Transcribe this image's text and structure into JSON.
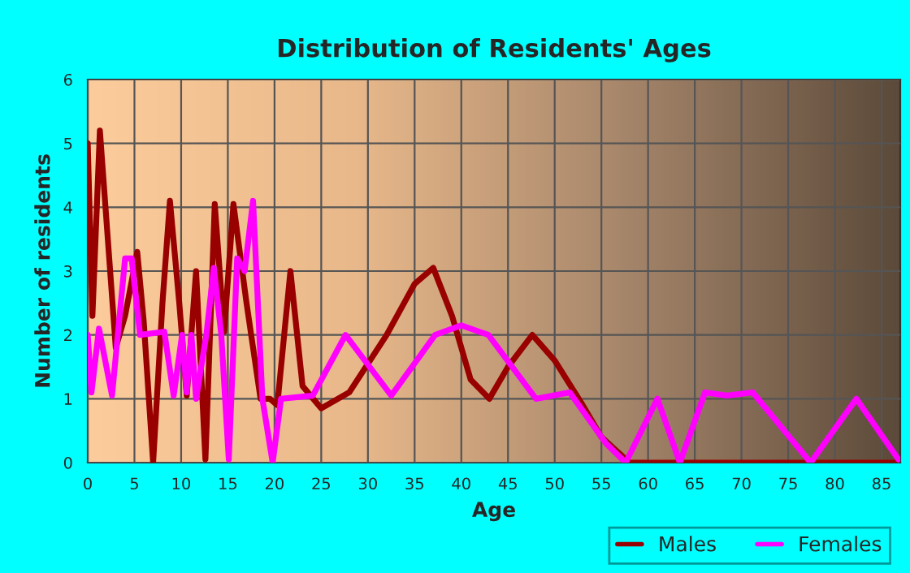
{
  "chart_data": {
    "type": "line",
    "title": "Distribution of Residents' Ages",
    "xlabel": "Age",
    "ylabel": "Number of residents",
    "xlim": [
      0,
      87
    ],
    "xticks": [
      0,
      5,
      10,
      15,
      20,
      25,
      30,
      35,
      40,
      45,
      50,
      55,
      60,
      65,
      70,
      75,
      80,
      85
    ],
    "ylim": [
      0,
      6
    ],
    "yticks": [
      0,
      1,
      2,
      3,
      4,
      5,
      6
    ],
    "grid": true,
    "legend": "bottom right",
    "series": [
      {
        "name": "Males",
        "color": "#990000",
        "x": [
          0,
          0.5,
          1.3,
          3,
          4,
          5.3,
          6,
          7,
          8,
          8.8,
          9.8,
          10.6,
          11.6,
          12.6,
          13.6,
          14.6,
          15.6,
          17,
          18.5,
          19.5,
          20.3,
          21.7,
          23,
          25,
          28,
          32,
          35,
          37,
          39,
          41,
          43,
          45,
          47.6,
          50,
          53,
          55,
          58,
          87
        ],
        "values": [
          5.0,
          2.3,
          5.2,
          1.8,
          2.3,
          3.3,
          2.2,
          0,
          2.5,
          4.1,
          2.5,
          1.05,
          3.0,
          0.05,
          4.05,
          2.05,
          4.05,
          2.5,
          1.0,
          1.0,
          0.9,
          3.0,
          1.2,
          0.85,
          1.1,
          2.0,
          2.8,
          3.05,
          2.3,
          1.3,
          1.0,
          1.5,
          2.0,
          1.6,
          0.9,
          0.4,
          0,
          0
        ]
      },
      {
        "name": "Females",
        "color": "#ff00ff",
        "x": [
          0,
          0.4,
          1.2,
          2.6,
          4,
          4.7,
          5.6,
          8.2,
          9.2,
          10.1,
          10.6,
          11.1,
          11.6,
          12.7,
          13.5,
          14.3,
          15.1,
          16,
          16.8,
          17.7,
          18.7,
          19.8,
          20.7,
          24.1,
          27.6,
          32.5,
          37.2,
          40,
          42.9,
          48,
          51.6,
          55.5,
          57.6,
          61,
          63.4,
          66.1,
          68.4,
          71.2,
          77.4,
          82.3,
          86.8
        ],
        "values": [
          2.0,
          1.1,
          2.1,
          1.05,
          3.2,
          3.2,
          2.0,
          2.05,
          1.05,
          2.0,
          1.1,
          2.0,
          1.0,
          2.0,
          3.05,
          2.0,
          0.05,
          3.2,
          3.0,
          4.1,
          1.0,
          0,
          1.0,
          1.05,
          2.0,
          1.05,
          2.0,
          2.15,
          2.0,
          1.0,
          1.1,
          0.3,
          0,
          1.0,
          0,
          1.1,
          1.05,
          1.1,
          0,
          1.0,
          0.05
        ]
      }
    ]
  }
}
